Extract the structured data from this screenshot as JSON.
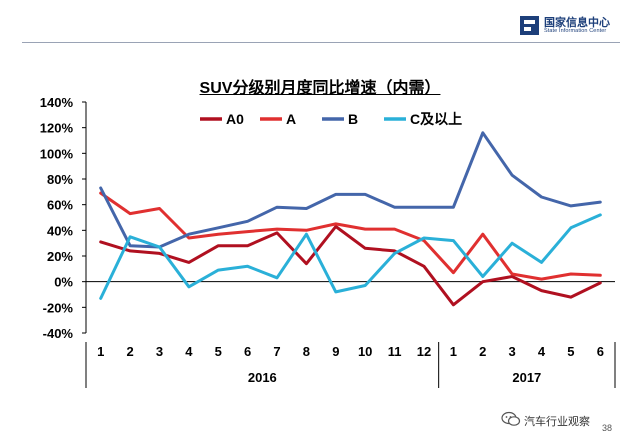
{
  "header": {
    "logo_cn": "国家信息中心",
    "logo_en": "State Information Center"
  },
  "footer": {
    "brand": "汽车行业观察",
    "page_number": "38"
  },
  "chart_data": {
    "type": "line",
    "title": "SUV分级别月度同比增速（内需）",
    "xlabel": "",
    "ylabel": "",
    "ylim": [
      -40,
      140
    ],
    "yticks": [
      "140%",
      "120%",
      "100%",
      "80%",
      "60%",
      "40%",
      "20%",
      "0%",
      "-20%",
      "-40%"
    ],
    "grid": false,
    "legend_position": "top",
    "categories": [
      "1",
      "2",
      "3",
      "4",
      "5",
      "6",
      "7",
      "8",
      "9",
      "10",
      "11",
      "12",
      "1",
      "2",
      "3",
      "4",
      "5",
      "6"
    ],
    "groups": [
      {
        "label": "2016",
        "count": 12
      },
      {
        "label": "2017",
        "count": 6
      }
    ],
    "series": [
      {
        "name": "A0",
        "color": "#b01020",
        "values": [
          31,
          24,
          22,
          15,
          28,
          28,
          38,
          14,
          43,
          26,
          24,
          12,
          -18,
          0,
          4,
          -7,
          -12,
          -1
        ]
      },
      {
        "name": "A",
        "color": "#e03030",
        "values": [
          69,
          53,
          57,
          34,
          37,
          39,
          41,
          40,
          45,
          41,
          41,
          32,
          7,
          37,
          6,
          2,
          6,
          5
        ]
      },
      {
        "name": "B",
        "color": "#4466aa",
        "values": [
          73,
          28,
          27,
          37,
          42,
          47,
          58,
          57,
          68,
          68,
          58,
          58,
          58,
          116,
          83,
          66,
          59,
          62
        ]
      },
      {
        "name": "C及以上",
        "color": "#2ab0d8",
        "values": [
          -13,
          35,
          27,
          -4,
          9,
          12,
          3,
          37,
          -8,
          -3,
          22,
          34,
          32,
          4,
          30,
          15,
          42,
          52
        ]
      }
    ]
  }
}
